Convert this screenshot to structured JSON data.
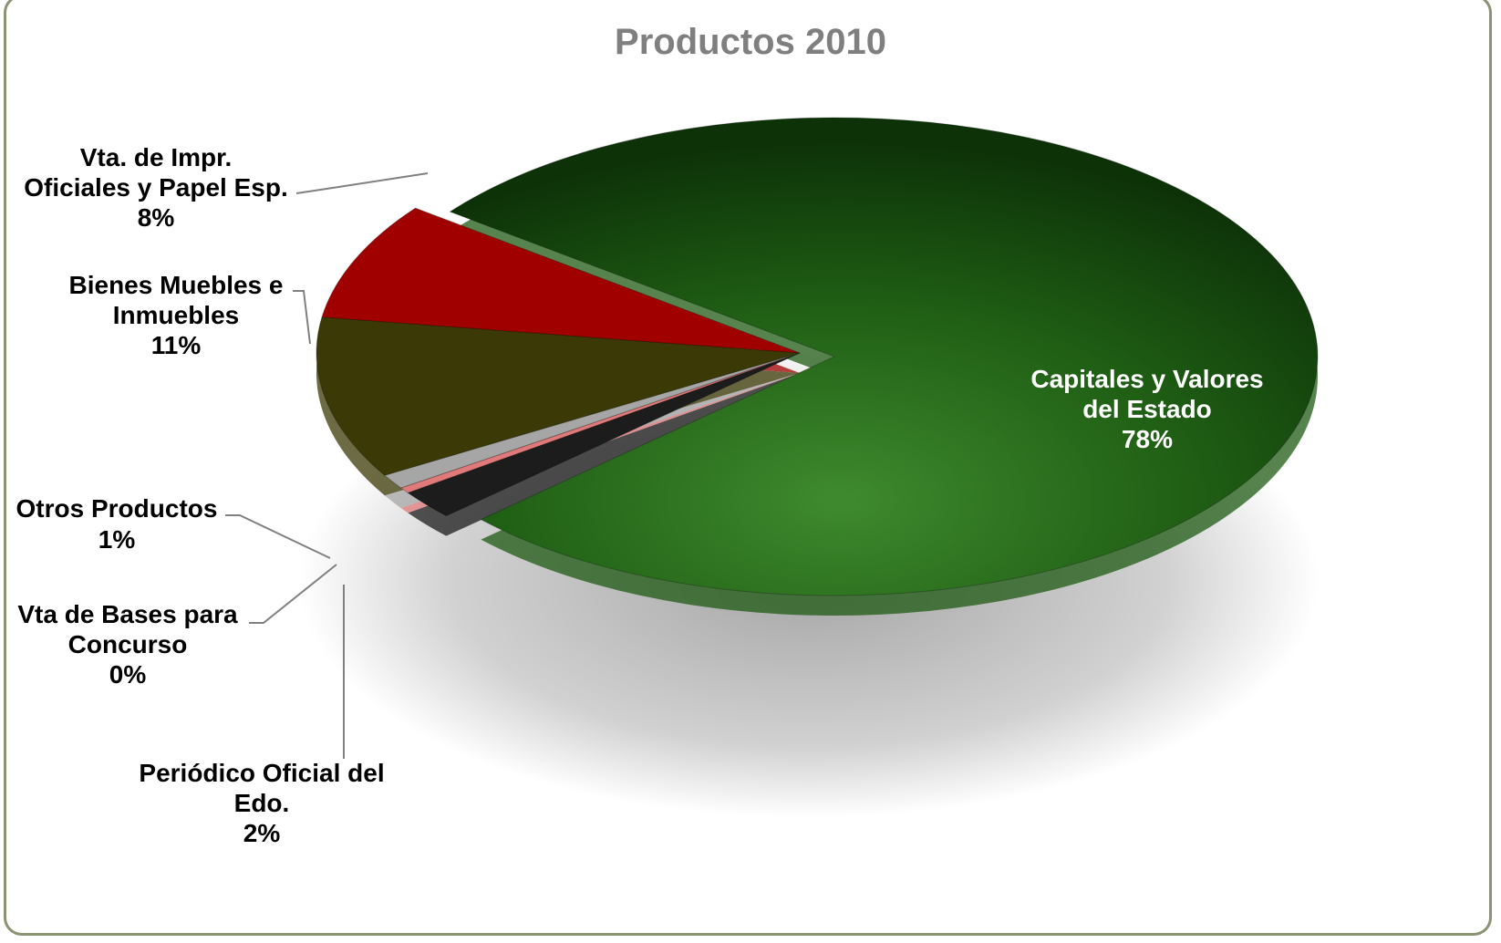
{
  "chart_data": {
    "type": "pie",
    "title": "Productos 2010",
    "slices": [
      {
        "label_lines": [
          "Capitales y Valores",
          "del Estado"
        ],
        "percent_label": "78%",
        "value": 78,
        "color": "#1f5a14",
        "exploded": true
      },
      {
        "label_lines": [
          "Periódico Oficial del",
          "Edo."
        ],
        "percent_label": "2%",
        "value": 2,
        "color": "#1c1c1c"
      },
      {
        "label_lines": [
          "Vta de Bases para",
          "Concurso"
        ],
        "percent_label": "0%",
        "value": 0.4,
        "color": "#e07a7a"
      },
      {
        "label_lines": [
          "Otros Productos"
        ],
        "percent_label": "1%",
        "value": 1,
        "color": "#a6a6a6"
      },
      {
        "label_lines": [
          "Bienes Muebles e",
          "Inmuebles"
        ],
        "percent_label": "11%",
        "value": 11,
        "color": "#3b3a06"
      },
      {
        "label_lines": [
          "Vta. de Impr.",
          "Oficiales y Papel Esp."
        ],
        "percent_label": "8%",
        "value": 8,
        "color": "#a00000"
      }
    ],
    "legend": "none",
    "style": "3d-exploded-pie"
  }
}
